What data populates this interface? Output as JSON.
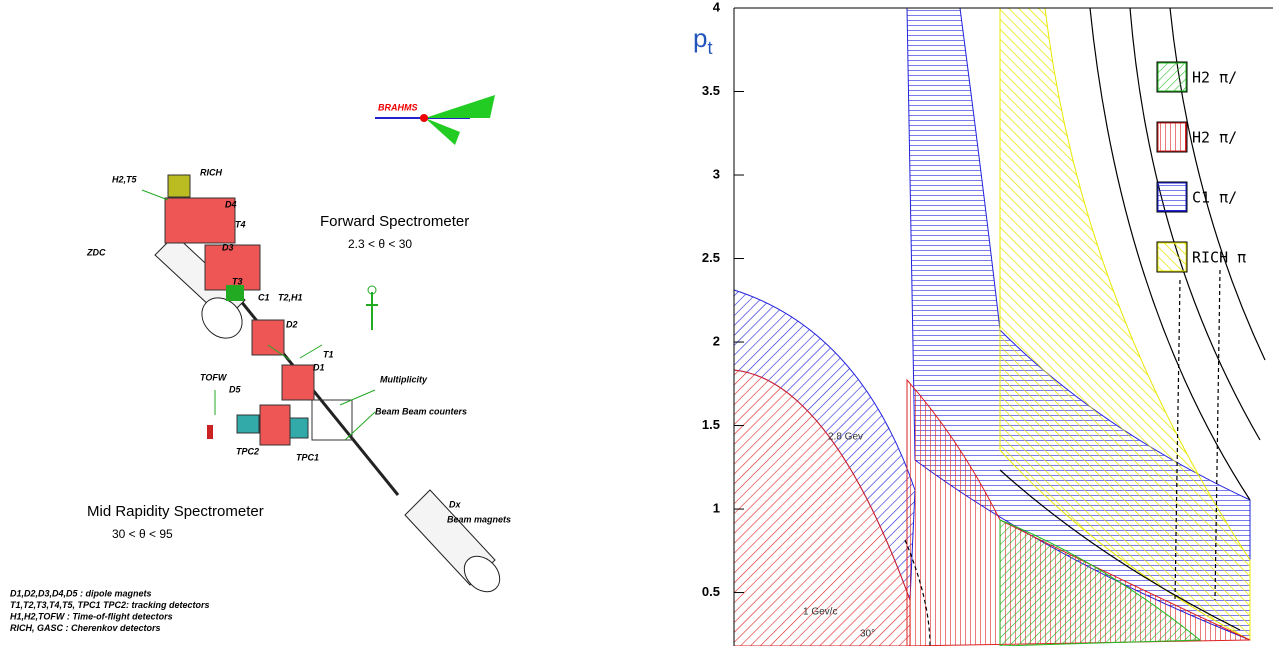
{
  "diagram": {
    "labels": [
      "BRAHMS",
      "RICH",
      "H2,T5",
      "D4",
      "T4",
      "D3",
      "ZDC",
      "T3",
      "C1",
      "T2,H1",
      "D2",
      "T1",
      "D1",
      "Multiplicity",
      "TOFW",
      "D5",
      "Beam Beam counters",
      "TPC2",
      "TPC1",
      "Dx",
      "Beam magnets"
    ],
    "forward_title": "Forward Spectrometer",
    "forward_range": "2.3 < θ < 30",
    "mid_title": "Mid Rapidity Spectrometer",
    "mid_range": "30 < θ < 95",
    "notes": [
      "D1,D2,D3,D4,D5 : dipole magnets",
      "T1,T2,T3,T4,T5, TPC1 TPC2: tracking detectors",
      "H1,H2,TOFW : Time-of-flight detectors",
      "RICH, GASC : Cherenkov detectors"
    ]
  },
  "chart_data": {
    "type": "area",
    "ylabel": "p",
    "ylabel_sub": "t",
    "ylim": [
      0.18,
      4
    ],
    "yticks": [
      0.5,
      1,
      1.5,
      2,
      2.5,
      3,
      3.5,
      4
    ],
    "legend": [
      {
        "name": "H2 π/",
        "color": "#22bb22"
      },
      {
        "name": "H2 π/",
        "color": "#dd2222"
      },
      {
        "name": "C1 π/",
        "color": "#2222dd"
      },
      {
        "name": "RICH π",
        "color": "#e8e800"
      }
    ],
    "annotations": [
      "2.8 Gev",
      "1 Gev/c",
      "30°"
    ]
  }
}
